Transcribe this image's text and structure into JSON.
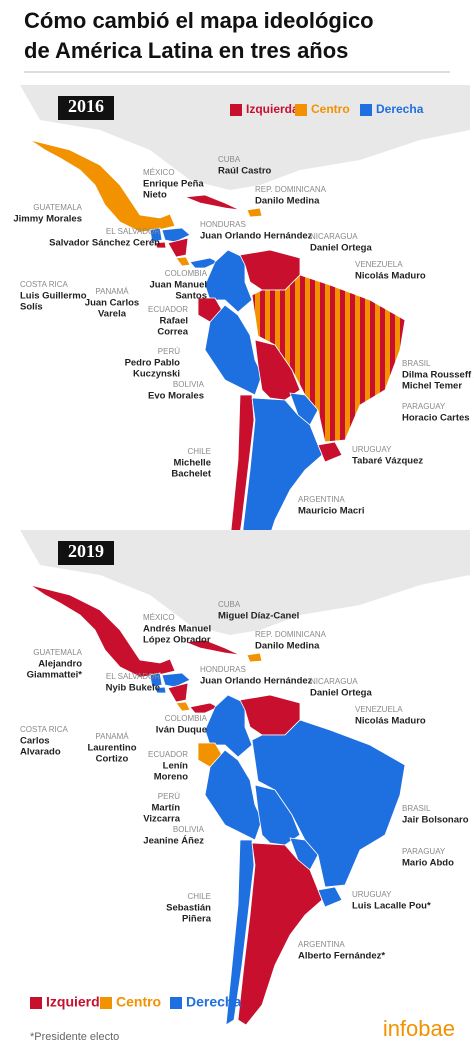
{
  "title": [
    "Cómo cambió el mapa ideológico",
    "de América Latina en tres años"
  ],
  "legend": [
    {
      "label": "Izquierda",
      "color": "#c8102e"
    },
    {
      "label": "Centro",
      "color": "#f39200"
    },
    {
      "label": "Derecha",
      "color": "#1e6fe0"
    }
  ],
  "maps": [
    {
      "year": "2016",
      "countries": [
        {
          "country": "MÉXICO",
          "president": [
            "Enrique Peña",
            "Nieto"
          ],
          "color": "#f39200"
        },
        {
          "country": "CUBA",
          "president": [
            "Raúl Castro"
          ],
          "color": "#c8102e"
        },
        {
          "country": "REP. DOMINICANA",
          "president": [
            "Danilo Medina"
          ],
          "color": "#f39200"
        },
        {
          "country": "GUATEMALA",
          "president": [
            "Jimmy Morales"
          ],
          "color": "#1e6fe0"
        },
        {
          "country": "EL SALVADOR",
          "president": [
            "Salvador Sánchez Cerén"
          ],
          "color": "#c8102e"
        },
        {
          "country": "HONDURAS",
          "president": [
            "Juan Orlando Hernández"
          ],
          "color": "#1e6fe0"
        },
        {
          "country": "NICARAGUA",
          "president": [
            "Daniel Ortega"
          ],
          "color": "#c8102e"
        },
        {
          "country": "COSTA RICA",
          "president": [
            "Luis Guillermo",
            "Solís"
          ],
          "color": "#f39200"
        },
        {
          "country": "PANAMÁ",
          "president": [
            "Juan Carlos",
            "Varela"
          ],
          "color": "#1e6fe0"
        },
        {
          "country": "COLOMBIA",
          "president": [
            "Juan Manuel",
            "Santos"
          ],
          "color": "#1e6fe0"
        },
        {
          "country": "VENEZUELA",
          "president": [
            "Nicolás Maduro"
          ],
          "color": "#c8102e"
        },
        {
          "country": "ECUADOR",
          "president": [
            "Rafael",
            "Correa"
          ],
          "color": "#c8102e"
        },
        {
          "country": "PERÚ",
          "president": [
            "Pedro Pablo",
            "Kuczynski"
          ],
          "color": "#1e6fe0"
        },
        {
          "country": "BRASIL",
          "president": [
            "Dilma Rousseff /",
            "Michel Temer"
          ],
          "color": [
            "#c8102e",
            "#f39200"
          ]
        },
        {
          "country": "BOLIVIA",
          "president": [
            "Evo Morales"
          ],
          "color": "#c8102e"
        },
        {
          "country": "PARAGUAY",
          "president": [
            "Horacio Cartes"
          ],
          "color": "#1e6fe0"
        },
        {
          "country": "CHILE",
          "president": [
            "Michelle",
            "Bachelet"
          ],
          "color": "#c8102e"
        },
        {
          "country": "URUGUAY",
          "president": [
            "Tabaré Vázquez"
          ],
          "color": "#c8102e"
        },
        {
          "country": "ARGENTINA",
          "president": [
            "Mauricio Macri"
          ],
          "color": "#1e6fe0"
        }
      ]
    },
    {
      "year": "2019",
      "countries": [
        {
          "country": "MÉXICO",
          "president": [
            "Andrés Manuel",
            "López Obrador"
          ],
          "color": "#c8102e"
        },
        {
          "country": "CUBA",
          "president": [
            "Miguel Díaz-Canel"
          ],
          "color": "#c8102e"
        },
        {
          "country": "REP. DOMINICANA",
          "president": [
            "Danilo Medina"
          ],
          "color": "#f39200"
        },
        {
          "country": "GUATEMALA",
          "president": [
            "Alejandro",
            "Giammattei*"
          ],
          "color": "#1e6fe0"
        },
        {
          "country": "EL SALVADOR",
          "president": [
            "Nyib Bukele"
          ],
          "color": "#1e6fe0"
        },
        {
          "country": "HONDURAS",
          "president": [
            "Juan Orlando Hernández"
          ],
          "color": "#1e6fe0"
        },
        {
          "country": "NICARAGUA",
          "president": [
            "Daniel Ortega"
          ],
          "color": "#c8102e"
        },
        {
          "country": "COSTA RICA",
          "president": [
            "Carlos",
            "Alvarado"
          ],
          "color": "#f39200"
        },
        {
          "country": "PANAMÁ",
          "president": [
            "Laurentino",
            "Cortizo"
          ],
          "color": "#c8102e"
        },
        {
          "country": "COLOMBIA",
          "president": [
            "Iván Duque"
          ],
          "color": "#1e6fe0"
        },
        {
          "country": "VENEZUELA",
          "president": [
            "Nicolás Maduro"
          ],
          "color": "#c8102e"
        },
        {
          "country": "ECUADOR",
          "president": [
            "Lenín",
            "Moreno"
          ],
          "color": "#f39200"
        },
        {
          "country": "PERÚ",
          "president": [
            "Martín",
            "Vizcarra"
          ],
          "color": "#1e6fe0"
        },
        {
          "country": "BRASIL",
          "president": [
            "Jair Bolsonaro"
          ],
          "color": "#1e6fe0"
        },
        {
          "country": "BOLIVIA",
          "president": [
            "Jeanine Áñez"
          ],
          "color": "#1e6fe0"
        },
        {
          "country": "PARAGUAY",
          "president": [
            "Mario Abdo"
          ],
          "color": "#1e6fe0"
        },
        {
          "country": "CHILE",
          "president": [
            "Sebastián",
            "Piñera"
          ],
          "color": "#1e6fe0"
        },
        {
          "country": "URUGUAY",
          "president": [
            "Luis Lacalle Pou*"
          ],
          "color": "#1e6fe0"
        },
        {
          "country": "ARGENTINA",
          "president": [
            "Alberto Fernández*"
          ],
          "color": "#c8102e"
        }
      ]
    }
  ],
  "footnote": "*Presidente electo",
  "brand": "infobae"
}
